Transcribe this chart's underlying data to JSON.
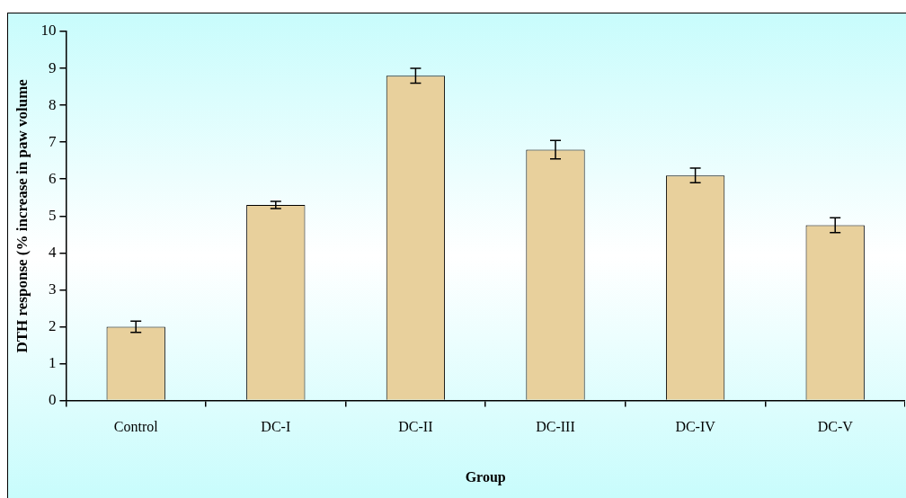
{
  "chart_data": {
    "type": "bar",
    "xlabel": "Group",
    "ylabel": "DTH response (% increase in paw volume",
    "categories": [
      "Control",
      "DC-I",
      "DC-II",
      "DC-III",
      "DC-IV",
      "DC-V"
    ],
    "values": [
      2.0,
      5.3,
      8.8,
      6.8,
      6.1,
      4.75
    ],
    "errors": [
      0.15,
      0.1,
      0.2,
      0.25,
      0.2,
      0.2
    ],
    "color": "#e8d09c",
    "ylim": [
      0,
      10
    ],
    "yticks": [
      0,
      1,
      2,
      3,
      4,
      5,
      6,
      7,
      8,
      9,
      10
    ],
    "grid": false
  }
}
